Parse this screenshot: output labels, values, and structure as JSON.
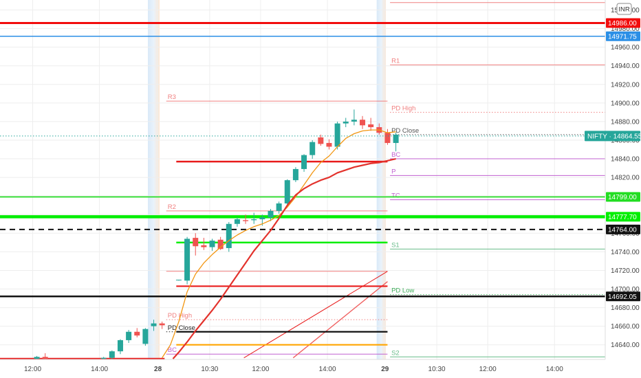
{
  "chart_data": {
    "type": "candlestick",
    "symbol": "NIFTY",
    "currency_badge": "INR",
    "last_price_label": "NIFTY · 14864.55",
    "y_range": [
      14625,
      15010
    ],
    "y_ticks": [
      14640,
      14660,
      14680,
      14700,
      14720,
      14740,
      14760,
      14780,
      14800,
      14820,
      14840,
      14860,
      14880,
      14900,
      14920,
      14940,
      14960,
      14980,
      15000
    ],
    "y_tick_labels": [
      "14640.00",
      "14660.00",
      "14680.00",
      "14700.00",
      "14720.00",
      "14740.00",
      "14760.00",
      "14780.00",
      "14800.00",
      "14820.00",
      "14840.00",
      "14860.00",
      "14880.00",
      "14900.00",
      "14920.00",
      "14940.00",
      "14960.00",
      "14980.00",
      "15000.00"
    ],
    "x_ticks": [
      {
        "label": "12:00",
        "bar": 0.0
      },
      {
        "label": "14:00",
        "bar": 8.0
      },
      {
        "label": "28",
        "bar": 15.0,
        "bold": true
      },
      {
        "label": "10:30",
        "bar": 21.2
      },
      {
        "label": "12:00",
        "bar": 27.3
      },
      {
        "label": "14:00",
        "bar": 35.3
      },
      {
        "label": "29",
        "bar": 42.2,
        "bold": true
      },
      {
        "label": "10:30",
        "bar": 48.4
      },
      {
        "label": "12:00",
        "bar": 54.5
      },
      {
        "label": "14:00",
        "bar": 62.5
      }
    ],
    "session_bands": [
      {
        "from_bar": 13.8,
        "to_bar": 15.2
      },
      {
        "from_bar": 41.2,
        "to_bar": 42.3
      }
    ],
    "candles": [
      {
        "i": 0.5,
        "o": 14625,
        "h": 14628,
        "l": 14623,
        "c": 14627
      },
      {
        "i": 1.5,
        "o": 14627,
        "h": 14631,
        "l": 14624,
        "c": 14625
      },
      {
        "i": 8.5,
        "o": 14625,
        "h": 14627,
        "l": 14622,
        "c": 14626
      },
      {
        "i": 9.5,
        "o": 14626,
        "h": 14634,
        "l": 14621,
        "c": 14633
      },
      {
        "i": 10.5,
        "o": 14633,
        "h": 14646,
        "l": 14630,
        "c": 14645
      },
      {
        "i": 11.5,
        "o": 14645,
        "h": 14656,
        "l": 14642,
        "c": 14654
      },
      {
        "i": 12.5,
        "o": 14654,
        "h": 14658,
        "l": 14648,
        "c": 14650
      },
      {
        "i": 13.5,
        "o": 14641,
        "h": 14658,
        "l": 14639,
        "c": 14657
      },
      {
        "i": 14.5,
        "o": 14660,
        "h": 14667,
        "l": 14655,
        "c": 14663
      },
      {
        "i": 15.5,
        "o": 14663,
        "h": 14665,
        "l": 14657,
        "c": 14661
      },
      {
        "i": 17.5,
        "o": 14710,
        "h": 14710,
        "l": 14709,
        "c": 14710
      },
      {
        "i": 18.5,
        "o": 14709,
        "h": 14756,
        "l": 14705,
        "c": 14754
      },
      {
        "i": 19.5,
        "o": 14755,
        "h": 14760,
        "l": 14736,
        "c": 14746
      },
      {
        "i": 20.5,
        "o": 14747,
        "h": 14755,
        "l": 14742,
        "c": 14745
      },
      {
        "i": 21.5,
        "o": 14745,
        "h": 14754,
        "l": 14741,
        "c": 14752
      },
      {
        "i": 22.5,
        "o": 14753,
        "h": 14756,
        "l": 14742,
        "c": 14743
      },
      {
        "i": 23.5,
        "o": 14744,
        "h": 14772,
        "l": 14740,
        "c": 14770
      },
      {
        "i": 24.5,
        "o": 14770,
        "h": 14777,
        "l": 14767,
        "c": 14775
      },
      {
        "i": 25.5,
        "o": 14774,
        "h": 14780,
        "l": 14770,
        "c": 14773
      },
      {
        "i": 26.5,
        "o": 14774,
        "h": 14782,
        "l": 14770,
        "c": 14775
      },
      {
        "i": 27.5,
        "o": 14775,
        "h": 14780,
        "l": 14768,
        "c": 14777
      },
      {
        "i": 28.5,
        "o": 14777,
        "h": 14786,
        "l": 14773,
        "c": 14784
      },
      {
        "i": 29.5,
        "o": 14784,
        "h": 14794,
        "l": 14781,
        "c": 14792
      },
      {
        "i": 30.5,
        "o": 14792,
        "h": 14818,
        "l": 14790,
        "c": 14817
      },
      {
        "i": 31.5,
        "o": 14817,
        "h": 14831,
        "l": 14815,
        "c": 14829
      },
      {
        "i": 32.5,
        "o": 14829,
        "h": 14845,
        "l": 14826,
        "c": 14844
      },
      {
        "i": 33.5,
        "o": 14844,
        "h": 14860,
        "l": 14840,
        "c": 14858
      },
      {
        "i": 34.5,
        "o": 14863,
        "h": 14866,
        "l": 14854,
        "c": 14856
      },
      {
        "i": 35.5,
        "o": 14857,
        "h": 14861,
        "l": 14850,
        "c": 14853
      },
      {
        "i": 36.5,
        "o": 14853,
        "h": 14880,
        "l": 14850,
        "c": 14878
      },
      {
        "i": 37.5,
        "o": 14878,
        "h": 14884,
        "l": 14874,
        "c": 14880
      },
      {
        "i": 38.5,
        "o": 14880,
        "h": 14893,
        "l": 14876,
        "c": 14882
      },
      {
        "i": 39.5,
        "o": 14882,
        "h": 14886,
        "l": 14872,
        "c": 14876
      },
      {
        "i": 40.5,
        "o": 14877,
        "h": 14884,
        "l": 14870,
        "c": 14874
      },
      {
        "i": 41.5,
        "o": 14874,
        "h": 14878,
        "l": 14866,
        "c": 14868
      },
      {
        "i": 42.5,
        "o": 14868,
        "h": 14872,
        "l": 14855,
        "c": 14857
      },
      {
        "i": 43.5,
        "o": 14857,
        "h": 14868,
        "l": 14848,
        "c": 14866
      }
    ],
    "moving_averages": [
      {
        "name": "fast",
        "color": "#f2950f",
        "width": 1.3,
        "points": [
          [
            15.5,
            14626
          ],
          [
            16.5,
            14640
          ],
          [
            17.5,
            14665
          ],
          [
            18.5,
            14697
          ],
          [
            19.5,
            14716
          ],
          [
            20.5,
            14728
          ],
          [
            21.5,
            14737
          ],
          [
            22.5,
            14745
          ],
          [
            23.5,
            14752
          ],
          [
            24.5,
            14758
          ],
          [
            25.5,
            14763
          ],
          [
            26.5,
            14767
          ],
          [
            27.5,
            14770
          ],
          [
            28.5,
            14774
          ],
          [
            29.5,
            14779
          ],
          [
            30.5,
            14788
          ],
          [
            31.5,
            14799
          ],
          [
            32.5,
            14812
          ],
          [
            33.5,
            14825
          ],
          [
            34.5,
            14836
          ],
          [
            35.5,
            14843
          ],
          [
            36.5,
            14853
          ],
          [
            37.5,
            14862
          ],
          [
            38.5,
            14867
          ],
          [
            39.5,
            14870
          ],
          [
            40.5,
            14871
          ],
          [
            41.5,
            14871
          ],
          [
            42.5,
            14868
          ],
          [
            43.5,
            14869
          ]
        ]
      },
      {
        "name": "slow",
        "color": "#e3322c",
        "width": 2.2,
        "points": [
          [
            16.8,
            14625
          ],
          [
            17.5,
            14632
          ],
          [
            18.5,
            14643
          ],
          [
            19.5,
            14655
          ],
          [
            20.5,
            14666
          ],
          [
            21.5,
            14677
          ],
          [
            22.5,
            14689
          ],
          [
            23.5,
            14702
          ],
          [
            24.5,
            14715
          ],
          [
            25.5,
            14728
          ],
          [
            26.5,
            14741
          ],
          [
            27.5,
            14752
          ],
          [
            28.5,
            14763
          ],
          [
            29.5,
            14776
          ],
          [
            30.5,
            14790
          ],
          [
            31.5,
            14801
          ],
          [
            32.5,
            14808
          ],
          [
            33.5,
            14813
          ],
          [
            34.5,
            14817
          ],
          [
            35.5,
            14820
          ],
          [
            36.5,
            14825
          ],
          [
            37.5,
            14828
          ],
          [
            38.5,
            14831
          ],
          [
            39.5,
            14833
          ],
          [
            40.5,
            14835
          ],
          [
            41.5,
            14836
          ],
          [
            42.5,
            14838
          ],
          [
            43.5,
            14840
          ]
        ]
      }
    ],
    "horizontal_lines": [
      {
        "value": 14986.0,
        "color": "#f20c0c",
        "width": 3,
        "from_bar": -5,
        "to_bar": 70,
        "tag": "14986.00"
      },
      {
        "value": 14971.75,
        "color": "#2b8fe6",
        "width": 1.5,
        "from_bar": -5,
        "to_bar": 70,
        "tag": "14971.75"
      },
      {
        "value": 14799.0,
        "color": "#22dd22",
        "width": 1.8,
        "from_bar": -5,
        "to_bar": 70,
        "tag": "14799.00"
      },
      {
        "value": 14777.7,
        "color": "#00ee00",
        "width": 4.5,
        "from_bar": -5,
        "to_bar": 70,
        "tag": "14777.70"
      },
      {
        "value": 14764.0,
        "color": "#111111",
        "width": 2,
        "dash": "8,6",
        "from_bar": -5,
        "to_bar": 70,
        "tag": "14764.00"
      },
      {
        "value": 14692.05,
        "color": "#111111",
        "width": 2.5,
        "from_bar": -5,
        "to_bar": 70,
        "tag": "14692.05"
      }
    ],
    "level_segments": [
      {
        "value": 14625,
        "color": "#e81b1b",
        "width": 2.5,
        "from_bar": -5,
        "to_bar": 15.8
      },
      {
        "value": 14837,
        "color": "#e81b1b",
        "width": 2.5,
        "from_bar": 17.2,
        "to_bar": 42.5
      },
      {
        "value": 14750,
        "color": "#00ee00",
        "width": 2.5,
        "from_bar": 17.2,
        "to_bar": 42.5
      },
      {
        "value": 14703,
        "color": "#e81b1b",
        "width": 2.2,
        "from_bar": 17.2,
        "to_bar": 42.5
      },
      {
        "value": 14654,
        "color": "#111111",
        "width": 2.2,
        "from_bar": 17.2,
        "to_bar": 42.5
      },
      {
        "value": 14640,
        "color": "#ffa500",
        "width": 2.2,
        "from_bar": 17.2,
        "to_bar": 42.5
      }
    ],
    "trend_lines": [
      {
        "color": "#e81b1b",
        "width": 1,
        "from": [
          25.3,
          14626
        ],
        "to": [
          42.5,
          14719
        ]
      },
      {
        "color": "#f06060",
        "width": 1.4,
        "from": [
          31.2,
          14626
        ],
        "to": [
          42.5,
          14708
        ]
      }
    ],
    "pivot_levels": [
      {
        "label": "R3",
        "value": 14902,
        "color": "#f08080",
        "from_bar": 16.0,
        "to_bar": 42.5
      },
      {
        "label": "R2",
        "value": 14784,
        "color": "#f08080",
        "from_bar": 16.0,
        "to_bar": 42.5
      },
      {
        "label": "PD High",
        "value": 14667,
        "color": "#f08080",
        "from_bar": 16.0,
        "to_bar": 42.5,
        "dotted": true
      },
      {
        "label": "PD Close",
        "value": 14654,
        "color": "#222222",
        "from_bar": 16.0,
        "to_bar": 42.5,
        "dotted": true
      },
      {
        "label": "BC",
        "value": 14630,
        "color": "#c060d0",
        "from_bar": 16.0,
        "to_bar": 42.5
      },
      {
        "label": "",
        "value": 14719,
        "color": "#f08080",
        "from_bar": 16.0,
        "to_bar": 42.5
      },
      {
        "label": "R1",
        "value": 14941,
        "color": "#f08080",
        "from_bar": 42.8,
        "to_bar": 70
      },
      {
        "label": "PD High",
        "value": 14890,
        "color": "#f08080",
        "from_bar": 42.8,
        "to_bar": 70,
        "dotted": true
      },
      {
        "label": "PD Close",
        "value": 14866,
        "color": "#555555",
        "from_bar": 42.8,
        "to_bar": 70,
        "dotted": true
      },
      {
        "label": "BC",
        "value": 14840,
        "color": "#c060d0",
        "from_bar": 42.8,
        "to_bar": 70
      },
      {
        "label": "P",
        "value": 14822,
        "color": "#c060d0",
        "from_bar": 42.8,
        "to_bar": 70
      },
      {
        "label": "TC",
        "value": 14796,
        "color": "#c060d0",
        "from_bar": 42.8,
        "to_bar": 70
      },
      {
        "label": "S1",
        "value": 14743,
        "color": "#66bb88",
        "from_bar": 42.8,
        "to_bar": 70
      },
      {
        "label": "PD Low",
        "value": 14694,
        "color": "#3fae5a",
        "from_bar": 42.8,
        "to_bar": 70,
        "dotted": true
      },
      {
        "label": "S2",
        "value": 14627,
        "color": "#66bb88",
        "from_bar": 42.8,
        "to_bar": 70
      },
      {
        "label": "",
        "value": 15008,
        "color": "#f08080",
        "from_bar": 42.8,
        "to_bar": 70
      }
    ],
    "last_price": {
      "value": 14864.55,
      "color": "#26a69a"
    },
    "colors": {
      "up": "#26a69a",
      "down": "#ef5350",
      "background": "#ffffff",
      "grid": "#eeeeee",
      "band": "#dceaf7",
      "band_edge": "#fde3cf"
    }
  }
}
